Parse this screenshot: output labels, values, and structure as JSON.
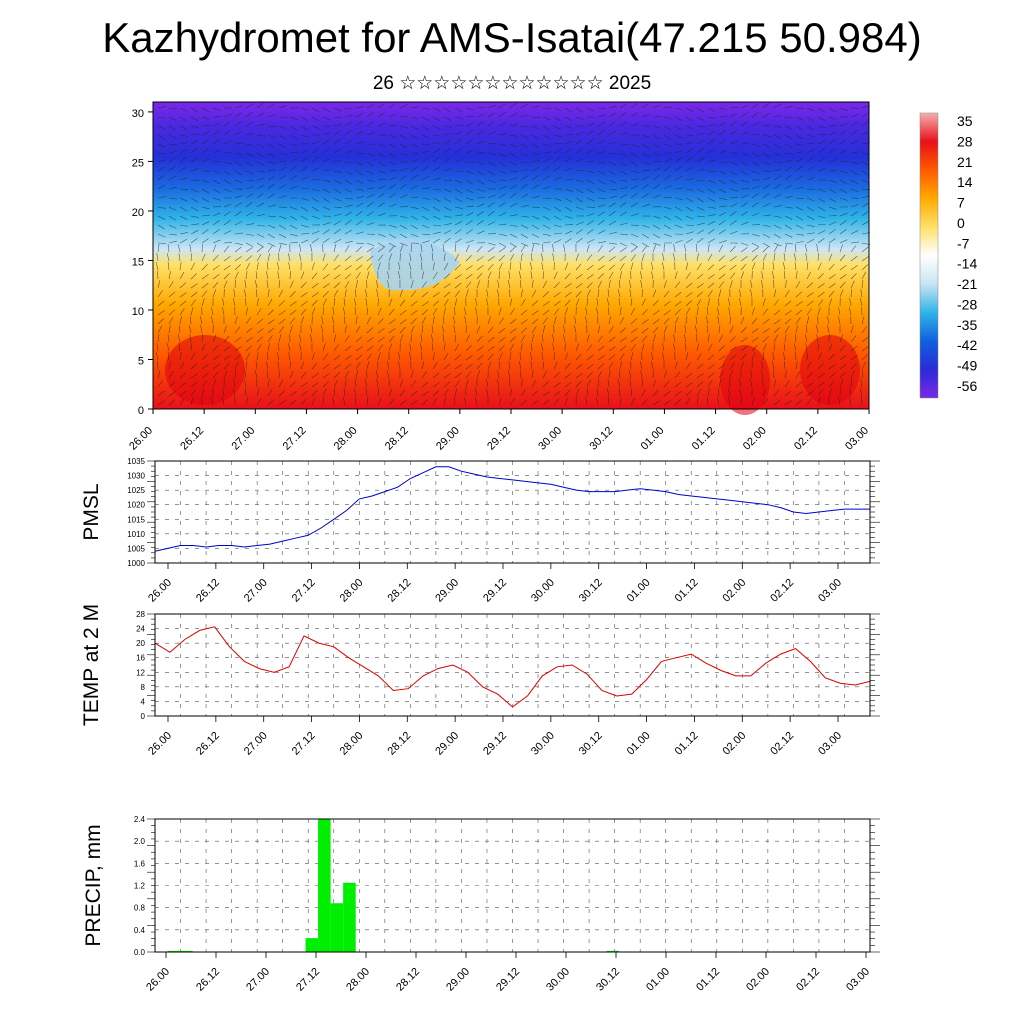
{
  "title": "Kazhydromet for AMS-Isatai(47.215 50.984)",
  "subtitle": "26 ☆☆☆☆☆☆☆☆☆☆☆☆ 2025",
  "x_tick_labels": [
    "26.00",
    "26.12",
    "27.00",
    "27.12",
    "28.00",
    "28.12",
    "29.00",
    "29.12",
    "30.00",
    "30.12",
    "01.00",
    "01.12",
    "02.00",
    "02.12",
    "03.00"
  ],
  "chart_data": [
    {
      "type": "heatmap",
      "name": "temperature-wind cross section",
      "ylim": [
        0,
        31
      ],
      "yticks": [
        0,
        5,
        10,
        15,
        20,
        25,
        30
      ],
      "colorbar_labels": [
        "35",
        "28",
        "21",
        "14",
        "7",
        "0",
        "-7",
        "-14",
        "-21",
        "-28",
        "-35",
        "-42",
        "-49",
        "-56"
      ],
      "colors": [
        "#f4a0a0",
        "#e8101a",
        "#ff5a00",
        "#ffaa00",
        "#ffe060",
        "#b8dcf0",
        "#30b4e8",
        "#1060e0",
        "#3a28d8",
        "#7a28e8"
      ]
    },
    {
      "type": "line",
      "ylabel": "PMSL",
      "ylim": [
        1000,
        1035
      ],
      "yticks": [
        1000,
        1005,
        1010,
        1015,
        1020,
        1025,
        1030,
        1035
      ],
      "color": "#0000cc",
      "x": [
        0,
        1,
        2,
        3,
        4,
        5,
        6,
        7,
        8,
        9,
        10,
        11,
        12,
        13,
        14,
        15,
        16,
        17,
        18,
        19,
        20,
        21,
        22,
        23,
        24,
        25,
        26,
        27,
        28,
        29,
        30,
        31,
        32,
        33,
        34,
        35,
        36,
        37,
        38,
        39,
        40,
        41,
        42,
        43,
        44,
        45,
        46,
        47,
        48,
        49,
        50,
        51,
        52,
        53,
        54,
        55,
        56
      ],
      "values": [
        1004,
        1005,
        1006,
        1006,
        1005.5,
        1006,
        1006,
        1005.5,
        1006,
        1006.5,
        1007.5,
        1008.5,
        1009.5,
        1012,
        1015,
        1018,
        1022,
        1023,
        1024.5,
        1026,
        1029,
        1031,
        1033,
        1033,
        1031.5,
        1030.5,
        1029.5,
        1029,
        1028.5,
        1028,
        1027.5,
        1027,
        1026,
        1025,
        1024.5,
        1024.5,
        1024.5,
        1025,
        1025.5,
        1025,
        1024.5,
        1023.5,
        1023,
        1022.5,
        1022,
        1021.5,
        1021,
        1020.5,
        1020,
        1019,
        1017.5,
        1017,
        1017.5,
        1018,
        1018.5,
        1018.5,
        1018.5
      ]
    },
    {
      "type": "line",
      "ylabel": "TEMP at 2 M",
      "ylim": [
        0,
        28
      ],
      "yticks": [
        0,
        4,
        8,
        12,
        16,
        20,
        24,
        28
      ],
      "color": "#dd0000",
      "x": [
        0,
        1,
        2,
        3,
        4,
        5,
        6,
        7,
        8,
        9,
        10,
        11,
        12,
        13,
        14,
        15,
        16,
        17,
        18,
        19,
        20,
        21,
        22,
        23,
        24,
        25,
        26,
        27,
        28,
        29,
        30,
        31,
        32,
        33,
        34,
        35,
        36,
        37,
        38,
        39,
        40,
        41,
        42,
        43,
        44,
        45,
        46,
        47,
        48
      ],
      "values": [
        20,
        17.5,
        21,
        23.5,
        24.5,
        19,
        15,
        13,
        12,
        13.5,
        22,
        20,
        19,
        16,
        13.5,
        11,
        7,
        7.5,
        11,
        13,
        14,
        12,
        8,
        6,
        2.5,
        5.5,
        11,
        13.5,
        14,
        11.5,
        7,
        5.5,
        6,
        10,
        15,
        16,
        17,
        14.5,
        12.5,
        11,
        11,
        14.5,
        17,
        18.5,
        15,
        10.5,
        9,
        8.5,
        9.5
      ]
    },
    {
      "type": "bar",
      "ylabel": "PRECIP, mm",
      "ylim": [
        0,
        2.4
      ],
      "yticks": [
        "0.0",
        "0.4",
        "0.8",
        "1.2",
        "1.6",
        "2.0",
        "2.4"
      ],
      "color": "#00ee00",
      "x": [
        0,
        1,
        2,
        3,
        4,
        5,
        6,
        7,
        8,
        9,
        10,
        11,
        12,
        13,
        14,
        15,
        16,
        17,
        18,
        19,
        20,
        21,
        22,
        23,
        24,
        25,
        26,
        27,
        28,
        29,
        30,
        31,
        32,
        33,
        34,
        35,
        36,
        37,
        38,
        39,
        40,
        41,
        42,
        43,
        44,
        45,
        46,
        47,
        48,
        49,
        50,
        51,
        52,
        53,
        54,
        55,
        56
      ],
      "values": [
        0,
        0.02,
        0.02,
        0,
        0,
        0,
        0,
        0,
        0,
        0,
        0,
        0,
        0.25,
        2.4,
        0.88,
        1.25,
        0,
        0,
        0,
        0,
        0,
        0,
        0,
        0,
        0,
        0,
        0,
        0,
        0,
        0,
        0,
        0,
        0,
        0,
        0,
        0,
        0.02,
        0,
        0,
        0,
        0,
        0,
        0,
        0,
        0,
        0,
        0,
        0,
        0,
        0,
        0,
        0,
        0,
        0,
        0,
        0,
        0
      ]
    }
  ]
}
